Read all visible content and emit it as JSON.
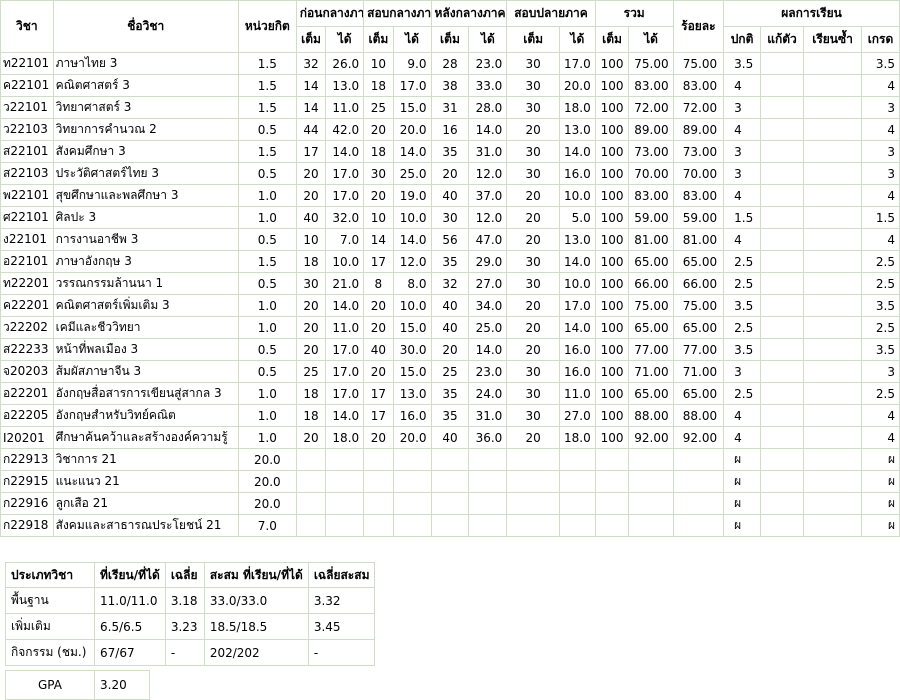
{
  "headers": {
    "code": "วิชา",
    "name": "ชื่อวิชา",
    "credit": "หน่วยกิต",
    "before_mid": "ก่อนกลางภาค",
    "midterm": "สอบกลางภาค",
    "after_mid": "หลังกลางภาค",
    "final": "สอบปลายภาค",
    "total": "รวม",
    "percent": "ร้อยละ",
    "result": "ผลการเรียน",
    "full": "เต็ม",
    "got": "ได้",
    "normal": "ปกติ",
    "fix": "แก้ตัว",
    "repeat": "เรียนซ้ำ",
    "grade": "เกรด"
  },
  "courses": [
    {
      "code": "ท22101",
      "name": "ภาษาไทย 3",
      "credit": "1.5",
      "bf": "32",
      "bg": "26.0",
      "mf": "10",
      "mg": "9.0",
      "af": "28",
      "ag": "23.0",
      "ff": "30",
      "fg": "17.0",
      "tf": "100",
      "tg": "75.00",
      "pct": "75.00",
      "normal": "3.5",
      "fix": "",
      "repeat": "",
      "grade": "3.5"
    },
    {
      "code": "ค22101",
      "name": "คณิตศาสตร์ 3",
      "credit": "1.5",
      "bf": "14",
      "bg": "13.0",
      "mf": "18",
      "mg": "17.0",
      "af": "38",
      "ag": "33.0",
      "ff": "30",
      "fg": "20.0",
      "tf": "100",
      "tg": "83.00",
      "pct": "83.00",
      "normal": "4",
      "fix": "",
      "repeat": "",
      "grade": "4"
    },
    {
      "code": "ว22101",
      "name": "วิทยาศาสตร์ 3",
      "credit": "1.5",
      "bf": "14",
      "bg": "11.0",
      "mf": "25",
      "mg": "15.0",
      "af": "31",
      "ag": "28.0",
      "ff": "30",
      "fg": "18.0",
      "tf": "100",
      "tg": "72.00",
      "pct": "72.00",
      "normal": "3",
      "fix": "",
      "repeat": "",
      "grade": "3"
    },
    {
      "code": "ว22103",
      "name": "วิทยาการคำนวณ 2",
      "credit": "0.5",
      "bf": "44",
      "bg": "42.0",
      "mf": "20",
      "mg": "20.0",
      "af": "16",
      "ag": "14.0",
      "ff": "20",
      "fg": "13.0",
      "tf": "100",
      "tg": "89.00",
      "pct": "89.00",
      "normal": "4",
      "fix": "",
      "repeat": "",
      "grade": "4"
    },
    {
      "code": "ส22101",
      "name": "สังคมศึกษา 3",
      "credit": "1.5",
      "bf": "17",
      "bg": "14.0",
      "mf": "18",
      "mg": "14.0",
      "af": "35",
      "ag": "31.0",
      "ff": "30",
      "fg": "14.0",
      "tf": "100",
      "tg": "73.00",
      "pct": "73.00",
      "normal": "3",
      "fix": "",
      "repeat": "",
      "grade": "3"
    },
    {
      "code": "ส22103",
      "name": "ประวัติศาสตร์ไทย 3",
      "credit": "0.5",
      "bf": "20",
      "bg": "17.0",
      "mf": "30",
      "mg": "25.0",
      "af": "20",
      "ag": "12.0",
      "ff": "30",
      "fg": "16.0",
      "tf": "100",
      "tg": "70.00",
      "pct": "70.00",
      "normal": "3",
      "fix": "",
      "repeat": "",
      "grade": "3"
    },
    {
      "code": "พ22101",
      "name": "สุขศึกษาและพลศึกษา 3",
      "credit": "1.0",
      "bf": "20",
      "bg": "17.0",
      "mf": "20",
      "mg": "19.0",
      "af": "40",
      "ag": "37.0",
      "ff": "20",
      "fg": "10.0",
      "tf": "100",
      "tg": "83.00",
      "pct": "83.00",
      "normal": "4",
      "fix": "",
      "repeat": "",
      "grade": "4"
    },
    {
      "code": "ศ22101",
      "name": "ศิลปะ 3",
      "credit": "1.0",
      "bf": "40",
      "bg": "32.0",
      "mf": "10",
      "mg": "10.0",
      "af": "30",
      "ag": "12.0",
      "ff": "20",
      "fg": "5.0",
      "tf": "100",
      "tg": "59.00",
      "pct": "59.00",
      "normal": "1.5",
      "fix": "",
      "repeat": "",
      "grade": "1.5"
    },
    {
      "code": "ง22101",
      "name": "การงานอาชีพ 3",
      "credit": "0.5",
      "bf": "10",
      "bg": "7.0",
      "mf": "14",
      "mg": "14.0",
      "af": "56",
      "ag": "47.0",
      "ff": "20",
      "fg": "13.0",
      "tf": "100",
      "tg": "81.00",
      "pct": "81.00",
      "normal": "4",
      "fix": "",
      "repeat": "",
      "grade": "4"
    },
    {
      "code": "อ22101",
      "name": "ภาษาอังกฤษ 3",
      "credit": "1.5",
      "bf": "18",
      "bg": "10.0",
      "mf": "17",
      "mg": "12.0",
      "af": "35",
      "ag": "29.0",
      "ff": "30",
      "fg": "14.0",
      "tf": "100",
      "tg": "65.00",
      "pct": "65.00",
      "normal": "2.5",
      "fix": "",
      "repeat": "",
      "grade": "2.5"
    },
    {
      "code": "ท22201",
      "name": "วรรณกรรมล้านนา 1",
      "credit": "0.5",
      "bf": "30",
      "bg": "21.0",
      "mf": "8",
      "mg": "8.0",
      "af": "32",
      "ag": "27.0",
      "ff": "30",
      "fg": "10.0",
      "tf": "100",
      "tg": "66.00",
      "pct": "66.00",
      "normal": "2.5",
      "fix": "",
      "repeat": "",
      "grade": "2.5"
    },
    {
      "code": "ค22201",
      "name": "คณิตศาสตร์เพิ่มเติม 3",
      "credit": "1.0",
      "bf": "20",
      "bg": "14.0",
      "mf": "20",
      "mg": "10.0",
      "af": "40",
      "ag": "34.0",
      "ff": "20",
      "fg": "17.0",
      "tf": "100",
      "tg": "75.00",
      "pct": "75.00",
      "normal": "3.5",
      "fix": "",
      "repeat": "",
      "grade": "3.5"
    },
    {
      "code": "ว22202",
      "name": "เคมีและชีววิทยา",
      "credit": "1.0",
      "bf": "20",
      "bg": "11.0",
      "mf": "20",
      "mg": "15.0",
      "af": "40",
      "ag": "25.0",
      "ff": "20",
      "fg": "14.0",
      "tf": "100",
      "tg": "65.00",
      "pct": "65.00",
      "normal": "2.5",
      "fix": "",
      "repeat": "",
      "grade": "2.5"
    },
    {
      "code": "ส22233",
      "name": "หน้าที่พลเมือง 3",
      "credit": "0.5",
      "bf": "20",
      "bg": "17.0",
      "mf": "40",
      "mg": "30.0",
      "af": "20",
      "ag": "14.0",
      "ff": "20",
      "fg": "16.0",
      "tf": "100",
      "tg": "77.00",
      "pct": "77.00",
      "normal": "3.5",
      "fix": "",
      "repeat": "",
      "grade": "3.5"
    },
    {
      "code": "จ20203",
      "name": "ส้มผัสภาษาจีน 3",
      "credit": "0.5",
      "bf": "25",
      "bg": "17.0",
      "mf": "20",
      "mg": "15.0",
      "af": "25",
      "ag": "23.0",
      "ff": "30",
      "fg": "16.0",
      "tf": "100",
      "tg": "71.00",
      "pct": "71.00",
      "normal": "3",
      "fix": "",
      "repeat": "",
      "grade": "3"
    },
    {
      "code": "อ22201",
      "name": "อังกฤษสื่อสารการเขียนสู่สากล 3",
      "credit": "1.0",
      "bf": "18",
      "bg": "17.0",
      "mf": "17",
      "mg": "13.0",
      "af": "35",
      "ag": "24.0",
      "ff": "30",
      "fg": "11.0",
      "tf": "100",
      "tg": "65.00",
      "pct": "65.00",
      "normal": "2.5",
      "fix": "",
      "repeat": "",
      "grade": "2.5"
    },
    {
      "code": "อ22205",
      "name": "อังกฤษสำหรับวิทย์คณิต",
      "credit": "1.0",
      "bf": "18",
      "bg": "14.0",
      "mf": "17",
      "mg": "16.0",
      "af": "35",
      "ag": "31.0",
      "ff": "30",
      "fg": "27.0",
      "tf": "100",
      "tg": "88.00",
      "pct": "88.00",
      "normal": "4",
      "fix": "",
      "repeat": "",
      "grade": "4"
    },
    {
      "code": "I20201",
      "name": "ศึกษาค้นคว้าและสร้างองค์ความรู้",
      "credit": "1.0",
      "bf": "20",
      "bg": "18.0",
      "mf": "20",
      "mg": "20.0",
      "af": "40",
      "ag": "36.0",
      "ff": "20",
      "fg": "18.0",
      "tf": "100",
      "tg": "92.00",
      "pct": "92.00",
      "normal": "4",
      "fix": "",
      "repeat": "",
      "grade": "4"
    },
    {
      "code": "ก22913",
      "name": "วิชาการ 21",
      "credit": "20.0",
      "bf": "",
      "bg": "",
      "mf": "",
      "mg": "",
      "af": "",
      "ag": "",
      "ff": "",
      "fg": "",
      "tf": "",
      "tg": "",
      "pct": "",
      "normal": "ผ",
      "fix": "",
      "repeat": "",
      "grade": "ผ"
    },
    {
      "code": "ก22915",
      "name": "แนะแนว 21",
      "credit": "20.0",
      "bf": "",
      "bg": "",
      "mf": "",
      "mg": "",
      "af": "",
      "ag": "",
      "ff": "",
      "fg": "",
      "tf": "",
      "tg": "",
      "pct": "",
      "normal": "ผ",
      "fix": "",
      "repeat": "",
      "grade": "ผ"
    },
    {
      "code": "ก22916",
      "name": "ลูกเสือ 21",
      "credit": "20.0",
      "bf": "",
      "bg": "",
      "mf": "",
      "mg": "",
      "af": "",
      "ag": "",
      "ff": "",
      "fg": "",
      "tf": "",
      "tg": "",
      "pct": "",
      "normal": "ผ",
      "fix": "",
      "repeat": "",
      "grade": "ผ"
    },
    {
      "code": "ก22918",
      "name": "สังคมและสาธารณประโยชน์ 21",
      "credit": "7.0",
      "bf": "",
      "bg": "",
      "mf": "",
      "mg": "",
      "af": "",
      "ag": "",
      "ff": "",
      "fg": "",
      "tf": "",
      "tg": "",
      "pct": "",
      "normal": "ผ",
      "fix": "",
      "repeat": "",
      "grade": "ผ"
    }
  ],
  "summary": {
    "headers": {
      "type": "ประเภทวิชา",
      "earned": "ที่เรียน/ที่ได้",
      "avg": "เฉลี่ย",
      "cum": "สะสม ที่เรียน/ที่ได้",
      "cumavg": "เฉลี่ยสะสม"
    },
    "rows": [
      {
        "type": "พื้นฐาน",
        "earned": "11.0/11.0",
        "avg": "3.18",
        "cum": "33.0/33.0",
        "cumavg": "3.32"
      },
      {
        "type": "เพิ่มเติม",
        "earned": "6.5/6.5",
        "avg": "3.23",
        "cum": "18.5/18.5",
        "cumavg": "3.45"
      },
      {
        "type": "กิจกรรม (ชม.)",
        "earned": "67/67",
        "avg": "-",
        "cum": "202/202",
        "cumavg": "-"
      }
    ]
  },
  "gpa": {
    "label": "GPA",
    "value": "3.20"
  }
}
